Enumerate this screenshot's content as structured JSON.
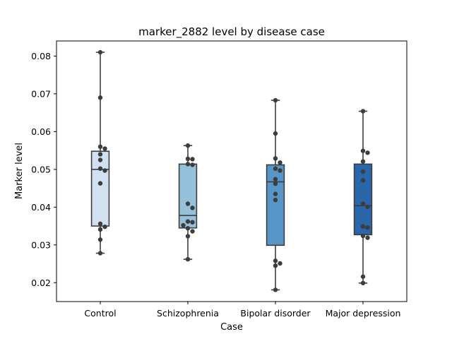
{
  "chart_data": {
    "type": "box",
    "title": "marker_2882 level by disease case",
    "xlabel": "Case",
    "ylabel": "Marker level",
    "categories": [
      "Control",
      "Schizophrenia",
      "Bipolar disorder",
      "Major depression"
    ],
    "ylim": [
      0.015,
      0.084
    ],
    "yticks": [
      0.02,
      0.03,
      0.04,
      0.05,
      0.06,
      0.07,
      0.08
    ],
    "ytick_labels": [
      "0.02",
      "0.03",
      "0.04",
      "0.05",
      "0.06",
      "0.07",
      "0.08"
    ],
    "grid": false,
    "legend": "none",
    "colors": {
      "box_fills": [
        "#d1e1f1",
        "#95c1da",
        "#5796c6",
        "#2a66ab"
      ],
      "box_edge": "#3d3d3d",
      "points": "#3d3d3d"
    },
    "boxes": [
      {
        "name": "Control",
        "min": 0.0278,
        "q1": 0.035,
        "median": 0.05,
        "q3": 0.0548,
        "max": 0.081,
        "points": [
          0.081,
          0.069,
          0.056,
          0.0555,
          0.054,
          0.0525,
          0.0502,
          0.0497,
          0.0463,
          0.0356,
          0.0348,
          0.0341,
          0.0314,
          0.0278
        ]
      },
      {
        "name": "Schizophrenia",
        "min": 0.0262,
        "q1": 0.0345,
        "median": 0.0378,
        "q3": 0.0514,
        "max": 0.0563,
        "points": [
          0.0563,
          0.0528,
          0.0527,
          0.0514,
          0.0512,
          0.0409,
          0.0398,
          0.0362,
          0.036,
          0.0352,
          0.0344,
          0.0336,
          0.0323,
          0.0262
        ]
      },
      {
        "name": "Bipolar disorder",
        "min": 0.0181,
        "q1": 0.0299,
        "median": 0.0467,
        "q3": 0.0512,
        "max": 0.0683,
        "points": [
          0.0683,
          0.0595,
          0.0529,
          0.0518,
          0.0502,
          0.0497,
          0.0474,
          0.0462,
          0.0435,
          0.0419,
          0.0258,
          0.0251,
          0.0245,
          0.0181
        ]
      },
      {
        "name": "Major depression",
        "min": 0.0199,
        "q1": 0.0327,
        "median": 0.0404,
        "q3": 0.0514,
        "max": 0.0654,
        "points": [
          0.0654,
          0.0549,
          0.0544,
          0.0521,
          0.0494,
          0.0471,
          0.0409,
          0.0401,
          0.0349,
          0.0346,
          0.0324,
          0.0319,
          0.0216,
          0.0199
        ]
      }
    ]
  }
}
